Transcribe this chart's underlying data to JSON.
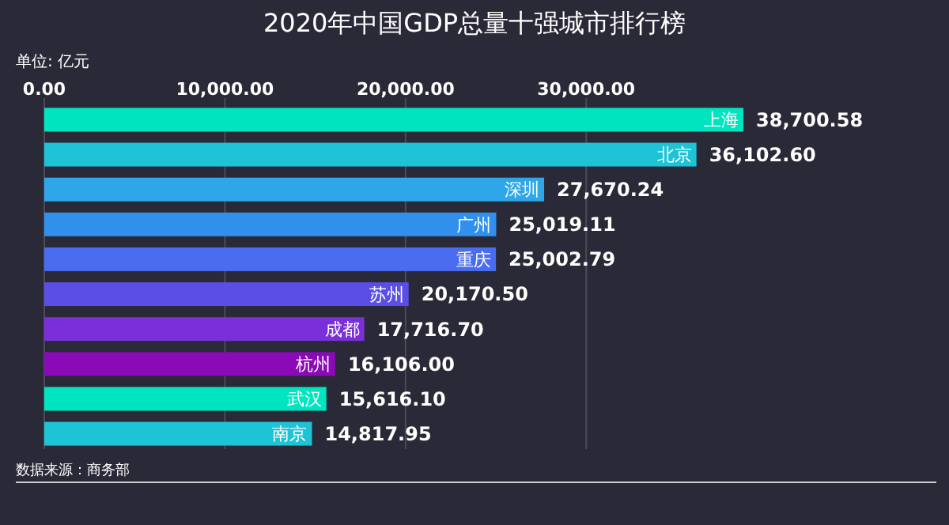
{
  "chart_data": {
    "type": "bar",
    "orientation": "horizontal",
    "title": "2020年中国GDP总量十强城市排行榜",
    "ylabel": "单位: 亿元",
    "categories": [
      "上海",
      "北京",
      "深圳",
      "广州",
      "重庆",
      "苏州",
      "成都",
      "杭州",
      "武汉",
      "南京"
    ],
    "values": [
      38700.58,
      36102.6,
      27670.24,
      25019.11,
      25002.79,
      20170.5,
      17716.7,
      16106.0,
      15616.1,
      14817.95
    ],
    "value_labels": [
      "38,700.58",
      "36,102.60",
      "27,670.24",
      "25,019.11",
      "25,002.79",
      "20,170.50",
      "17,716.70",
      "16,106.00",
      "15,616.10",
      "14,817.95"
    ],
    "colors": [
      "#00e5c0",
      "#1ec3d6",
      "#2ea6e8",
      "#3090ec",
      "#4a6cf0",
      "#5a4ee6",
      "#7a2fd8",
      "#8a0ab8",
      "#00e5c0",
      "#1ec3d6"
    ],
    "xlim": [
      0,
      38700.58
    ],
    "xticks": [
      {
        "value": 0,
        "label": "0.00"
      },
      {
        "value": 10000,
        "label": "10,000.00"
      },
      {
        "value": 20000,
        "label": "20,000.00"
      },
      {
        "value": 30000,
        "label": "30,000.00"
      }
    ],
    "grid": "x",
    "annotations": [
      "数据来源：商务部"
    ]
  }
}
